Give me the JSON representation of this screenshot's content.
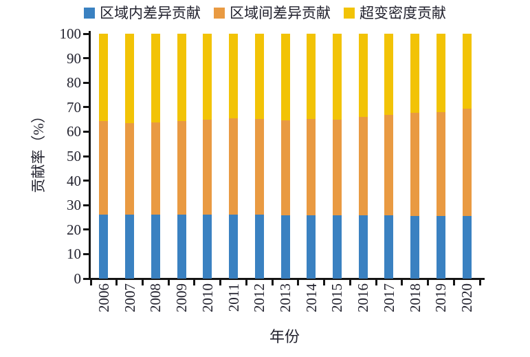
{
  "chart_data": {
    "type": "bar",
    "stacked": true,
    "title": "",
    "xlabel": "年份",
    "ylabel": "贡献率（%）",
    "ylim": [
      0,
      100
    ],
    "ytick_step": 10,
    "yticks": [
      "0",
      "10",
      "20",
      "30",
      "40",
      "50",
      "60",
      "70",
      "80",
      "90",
      "100"
    ],
    "grid": false,
    "legend_position": "top",
    "categories": [
      "2006",
      "2007",
      "2008",
      "2009",
      "2010",
      "2011",
      "2012",
      "2013",
      "2014",
      "2015",
      "2016",
      "2017",
      "2018",
      "2019",
      "2020"
    ],
    "series": [
      {
        "name": "区域内差异贡献",
        "color": "#3a81c1",
        "values": [
          26.2,
          26.2,
          26.2,
          26.0,
          26.0,
          26.0,
          26.0,
          25.9,
          25.9,
          25.9,
          25.9,
          25.8,
          25.7,
          25.6,
          25.5
        ]
      },
      {
        "name": "区域间差异贡献",
        "color": "#e99a42",
        "values": [
          38.0,
          37.2,
          37.6,
          38.2,
          38.9,
          39.5,
          39.2,
          38.8,
          39.3,
          38.9,
          40.2,
          41.1,
          41.9,
          42.5,
          44.0
        ]
      },
      {
        "name": "超变密度贡献",
        "color": "#f2c306",
        "values": [
          35.8,
          36.6,
          36.2,
          35.8,
          35.1,
          34.5,
          34.8,
          35.3,
          34.8,
          35.2,
          33.9,
          33.1,
          32.4,
          31.9,
          30.5
        ]
      }
    ],
    "axis_color": "#141414",
    "text_color": "#22222e",
    "background_color": "#ffffff"
  }
}
